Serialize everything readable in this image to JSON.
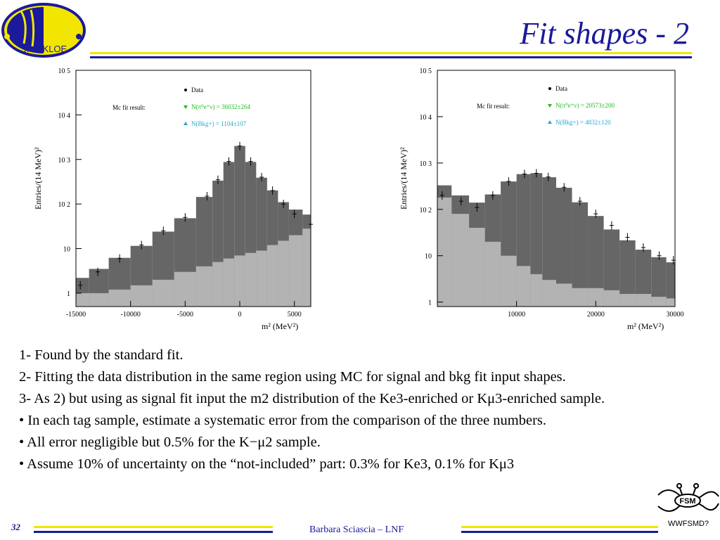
{
  "slide": {
    "title": "Fit shapes - 2",
    "page_number": "32",
    "footer": "Barbara Sciascia – LNF",
    "logo_text": "ЭloK KLOE",
    "badge_caption": "WWFSMD?",
    "badge_text": "FSM"
  },
  "body": {
    "lines": [
      "1- Found by the standard fit.",
      "2- Fitting the data distribution in the same region using MC for signal and bkg fit input shapes.",
      "3- As 2) but using as signal fit input the m2 distribution of the Ke3-enriched or Kμ3-enriched sample.",
      "• In each tag sample, estimate a systematic error from the comparison of the three numbers.",
      "• All error negligible but 0.5% for the K−μ2 sample.",
      "• Assume 10% of uncertainty on the “not-included” part: 0.3% for Ke3, 0.1% for Kμ3"
    ]
  },
  "chart_data": [
    {
      "type": "area",
      "ylog": true,
      "xlim": [
        -15000,
        6500
      ],
      "ylim": [
        0.5,
        100000
      ],
      "xticks": [
        "-15000",
        "-10000",
        "-5000",
        "0",
        "5000"
      ],
      "xtick_values": [
        -15000,
        -10000,
        -5000,
        0,
        5000
      ],
      "yticks": [
        "1",
        "10",
        "10 2",
        "10 3",
        "10 4",
        "10 5"
      ],
      "ylabel": "Entries/(14 MeV)²",
      "xlabel": "m² (MeV²)",
      "legend_placement": "top-center",
      "fit_label": "Mc fit result:",
      "legend": [
        "Data",
        "N(π⁰e⁺ν) = 36032±264",
        "N(Bkg+) = 1104±107"
      ],
      "colors": {
        "signal": "#666666",
        "background": "#b3b3b3",
        "data": "#000000",
        "legend2": "#22bb22",
        "legend3": "#22aacc"
      },
      "x": [
        -14600,
        -13000,
        -11000,
        -9000,
        -7000,
        -5000,
        -3000,
        -2000,
        -1000,
        0,
        1000,
        2000,
        3000,
        4000,
        5000,
        6500
      ],
      "series": [
        {
          "name": "Data",
          "values": [
            1.5,
            3,
            6,
            12,
            25,
            50,
            150,
            350,
            900,
            2000,
            900,
            400,
            200,
            100,
            60,
            35
          ]
        },
        {
          "name": "N(π⁰e⁺ν) = 36032±264",
          "values": [
            1.2,
            2.5,
            5,
            10,
            22,
            45,
            140,
            330,
            870,
            2000,
            870,
            380,
            190,
            95,
            55,
            30
          ]
        },
        {
          "name": "N(Bkg+) = 1104±107",
          "values": [
            1,
            1,
            1.2,
            1.5,
            2,
            3,
            4,
            5,
            6,
            7,
            8,
            9,
            12,
            15,
            20,
            28
          ]
        }
      ]
    },
    {
      "type": "area",
      "ylog": true,
      "xlim": [
        0,
        30000
      ],
      "ylim": [
        0.8,
        100000
      ],
      "xticks": [
        "10000",
        "20000",
        "30000"
      ],
      "xtick_values": [
        10000,
        20000,
        30000
      ],
      "yticks": [
        "1",
        "10",
        "10 2",
        "10 3",
        "10 4",
        "10 5"
      ],
      "ylabel": "Entries/(14 MeV)²",
      "xlabel": "m² (MeV²)",
      "legend_placement": "top-center",
      "fit_label": "Mc fit result:",
      "legend": [
        "Data",
        "N(π⁰e⁺ν) = 20573±200",
        "N(Bkg+) = 4832±120"
      ],
      "colors": {
        "signal": "#666666",
        "background": "#b3b3b3",
        "data": "#000000",
        "legend2": "#22bb22",
        "legend3": "#22aacc"
      },
      "x": [
        600,
        3000,
        5000,
        7000,
        9000,
        11000,
        12500,
        14000,
        16000,
        18000,
        20000,
        22000,
        24000,
        26000,
        28000,
        29800
      ],
      "series": [
        {
          "name": "Data",
          "values": [
            200,
            150,
            110,
            200,
            400,
            580,
            600,
            500,
            300,
            150,
            80,
            45,
            25,
            15,
            10,
            8
          ]
        },
        {
          "name": "N(π⁰e⁺ν) = 20573±200",
          "values": [
            150,
            120,
            100,
            190,
            390,
            570,
            600,
            490,
            290,
            140,
            70,
            35,
            20,
            12,
            8,
            6
          ]
        },
        {
          "name": "N(Bkg+) = 4832±120",
          "values": [
            180,
            80,
            40,
            20,
            10,
            6,
            4,
            3,
            2.5,
            2,
            2,
            1.8,
            1.5,
            1.5,
            1.3,
            1.2
          ]
        }
      ]
    }
  ]
}
